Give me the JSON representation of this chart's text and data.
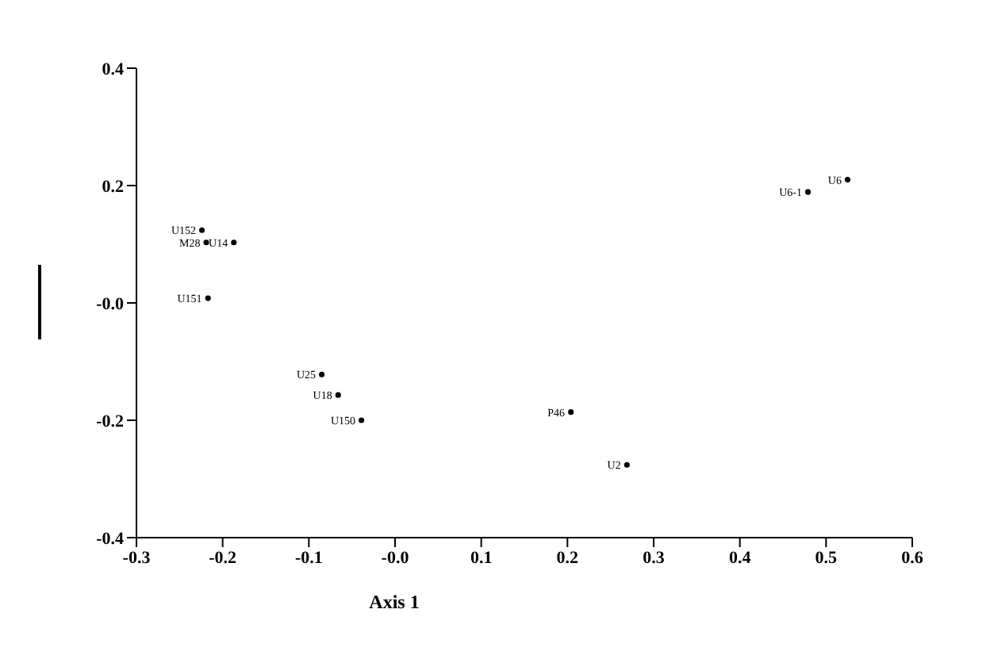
{
  "chart_data": {
    "type": "scatter",
    "xlabel": "Axis 1",
    "x": [
      0.525,
      0.479,
      0.269,
      0.204,
      -0.039,
      -0.066,
      -0.085,
      -0.217,
      -0.224,
      -0.219,
      -0.187
    ],
    "values": [
      0.21,
      0.189,
      -0.276,
      -0.186,
      -0.2,
      -0.157,
      -0.122,
      0.008,
      0.124,
      0.103,
      0.103
    ],
    "value_labels": [
      "U6",
      "U6-1",
      "U2",
      "P46",
      "U150",
      "U18",
      "U25",
      "U151",
      "U152",
      "M28",
      "U14"
    ],
    "color": "#000000",
    "marker": "circle",
    "xlim": [
      -0.3,
      0.6
    ],
    "xticks": [
      -0.3,
      -0.2,
      -0.1,
      {
        "value": 0,
        "label": "-0.0"
      },
      0.1,
      0.2,
      0.3,
      0.4,
      0.5,
      0.6
    ],
    "ylim": [
      -0.4,
      0.4
    ],
    "yticks": [
      -0.4,
      -0.2,
      {
        "value": 0,
        "label": "-0.0"
      },
      0.2,
      0.4
    ],
    "grid": false,
    "legend": false
  }
}
